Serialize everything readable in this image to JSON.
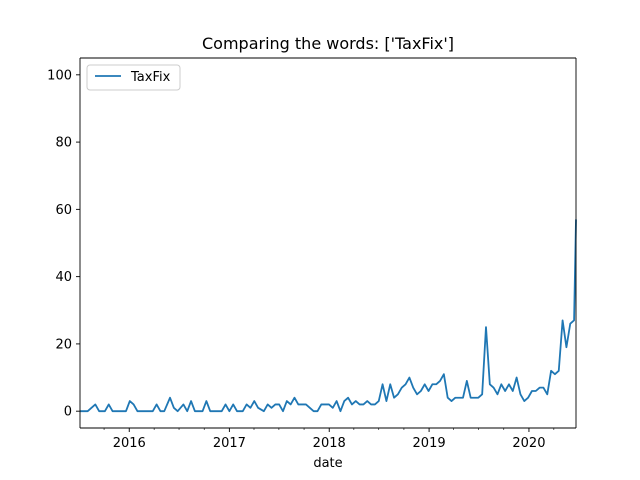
{
  "chart_data": {
    "type": "line",
    "title": "Comparing the words: ['TaxFix']",
    "xlabel": "date",
    "ylabel": "",
    "x_type": "date",
    "x_range": [
      "2015-07-05",
      "2020-06-21"
    ],
    "xticks": [
      {
        "label": "2016",
        "date": "2016-01-01"
      },
      {
        "label": "2017",
        "date": "2017-01-01"
      },
      {
        "label": "2018",
        "date": "2018-01-01"
      },
      {
        "label": "2019",
        "date": "2019-01-01"
      },
      {
        "label": "2020",
        "date": "2020-01-01"
      }
    ],
    "ylim": [
      -5,
      105
    ],
    "yticks": [
      0,
      20,
      40,
      60,
      80,
      100
    ],
    "grid": false,
    "legend": {
      "position": "top-left"
    },
    "color": "#1f77b4",
    "series": [
      {
        "name": "TaxFix",
        "points": [
          [
            "2015-07-05",
            0
          ],
          [
            "2015-08-02",
            0
          ],
          [
            "2015-08-30",
            2
          ],
          [
            "2015-09-13",
            0
          ],
          [
            "2015-10-04",
            0
          ],
          [
            "2015-10-18",
            2
          ],
          [
            "2015-11-01",
            0
          ],
          [
            "2015-12-20",
            0
          ],
          [
            "2016-01-03",
            3
          ],
          [
            "2016-01-17",
            2
          ],
          [
            "2016-01-31",
            0
          ],
          [
            "2016-03-27",
            0
          ],
          [
            "2016-04-10",
            2
          ],
          [
            "2016-04-24",
            0
          ],
          [
            "2016-05-08",
            0
          ],
          [
            "2016-05-29",
            4
          ],
          [
            "2016-06-12",
            1
          ],
          [
            "2016-06-26",
            0
          ],
          [
            "2016-07-17",
            2
          ],
          [
            "2016-07-31",
            0
          ],
          [
            "2016-08-14",
            3
          ],
          [
            "2016-08-28",
            0
          ],
          [
            "2016-09-25",
            0
          ],
          [
            "2016-10-09",
            3
          ],
          [
            "2016-10-23",
            0
          ],
          [
            "2016-12-04",
            0
          ],
          [
            "2016-12-18",
            2
          ],
          [
            "2017-01-01",
            0
          ],
          [
            "2017-01-15",
            2
          ],
          [
            "2017-01-29",
            0
          ],
          [
            "2017-02-19",
            0
          ],
          [
            "2017-03-05",
            2
          ],
          [
            "2017-03-19",
            1
          ],
          [
            "2017-04-02",
            3
          ],
          [
            "2017-04-16",
            1
          ],
          [
            "2017-05-07",
            0
          ],
          [
            "2017-05-21",
            2
          ],
          [
            "2017-06-04",
            1
          ],
          [
            "2017-06-18",
            2
          ],
          [
            "2017-07-02",
            2
          ],
          [
            "2017-07-16",
            0
          ],
          [
            "2017-07-30",
            3
          ],
          [
            "2017-08-13",
            2
          ],
          [
            "2017-08-27",
            4
          ],
          [
            "2017-09-10",
            2
          ],
          [
            "2017-09-24",
            2
          ],
          [
            "2017-10-08",
            2
          ],
          [
            "2017-10-22",
            1
          ],
          [
            "2017-11-05",
            0
          ],
          [
            "2017-11-19",
            0
          ],
          [
            "2017-12-03",
            2
          ],
          [
            "2017-12-17",
            2
          ],
          [
            "2017-12-31",
            2
          ],
          [
            "2018-01-14",
            1
          ],
          [
            "2018-01-28",
            3
          ],
          [
            "2018-02-11",
            0
          ],
          [
            "2018-02-25",
            3
          ],
          [
            "2018-03-11",
            4
          ],
          [
            "2018-03-25",
            2
          ],
          [
            "2018-04-08",
            3
          ],
          [
            "2018-04-22",
            2
          ],
          [
            "2018-05-06",
            2
          ],
          [
            "2018-05-20",
            3
          ],
          [
            "2018-06-03",
            2
          ],
          [
            "2018-06-17",
            2
          ],
          [
            "2018-07-01",
            3
          ],
          [
            "2018-07-15",
            8
          ],
          [
            "2018-07-29",
            3
          ],
          [
            "2018-08-12",
            8
          ],
          [
            "2018-08-26",
            4
          ],
          [
            "2018-09-09",
            5
          ],
          [
            "2018-09-23",
            7
          ],
          [
            "2018-10-07",
            8
          ],
          [
            "2018-10-21",
            10
          ],
          [
            "2018-11-04",
            7
          ],
          [
            "2018-11-18",
            5
          ],
          [
            "2018-12-02",
            6
          ],
          [
            "2018-12-16",
            8
          ],
          [
            "2018-12-30",
            6
          ],
          [
            "2019-01-13",
            8
          ],
          [
            "2019-01-27",
            8
          ],
          [
            "2019-02-10",
            9
          ],
          [
            "2019-02-24",
            11
          ],
          [
            "2019-03-10",
            4
          ],
          [
            "2019-03-24",
            3
          ],
          [
            "2019-04-07",
            4
          ],
          [
            "2019-04-21",
            4
          ],
          [
            "2019-05-05",
            4
          ],
          [
            "2019-05-19",
            9
          ],
          [
            "2019-06-02",
            4
          ],
          [
            "2019-06-16",
            4
          ],
          [
            "2019-06-30",
            4
          ],
          [
            "2019-07-14",
            5
          ],
          [
            "2019-07-28",
            25
          ],
          [
            "2019-08-11",
            8
          ],
          [
            "2019-08-25",
            7
          ],
          [
            "2019-09-08",
            5
          ],
          [
            "2019-09-22",
            8
          ],
          [
            "2019-10-06",
            6
          ],
          [
            "2019-10-20",
            8
          ],
          [
            "2019-11-03",
            6
          ],
          [
            "2019-11-17",
            10
          ],
          [
            "2019-12-01",
            5
          ],
          [
            "2019-12-15",
            3
          ],
          [
            "2019-12-29",
            4
          ],
          [
            "2020-01-12",
            6
          ],
          [
            "2020-01-26",
            6
          ],
          [
            "2020-02-09",
            7
          ],
          [
            "2020-02-23",
            7
          ],
          [
            "2020-03-08",
            5
          ],
          [
            "2020-03-22",
            12
          ],
          [
            "2020-04-05",
            11
          ],
          [
            "2020-04-19",
            12
          ],
          [
            "2020-05-03",
            27
          ],
          [
            "2020-05-17",
            19
          ],
          [
            "2020-05-31",
            26
          ],
          [
            "2020-06-14",
            27
          ],
          [
            "2020-06-21",
            57
          ]
        ]
      }
    ]
  }
}
